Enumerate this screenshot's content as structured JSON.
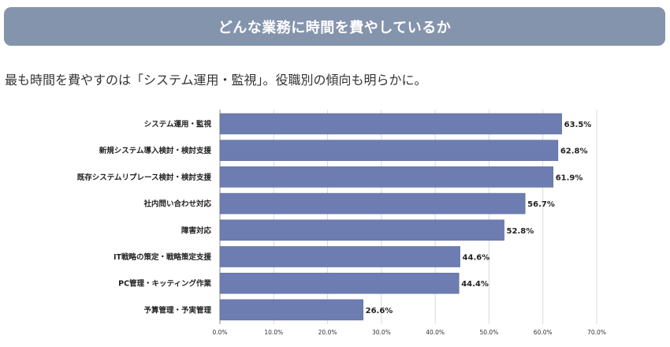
{
  "header": {
    "title": "どんな業務に時間を費やしているか",
    "subtitle": "最も時間を費やすのは「システム運用・監視」。役職別の傾向も明らかに。"
  },
  "colors": {
    "banner": "#8594ad",
    "bar": "#6d7db2",
    "grid": "#d9d9d9"
  },
  "chart_data": {
    "type": "bar",
    "orientation": "horizontal",
    "categories": [
      "システム運用・監視",
      "新規システム導入検討・検討支援",
      "既存システムリプレース検討・検討支援",
      "社内問い合わせ対応",
      "障害対応",
      "IT戦略の策定・戦略策定支援",
      "PC管理・キッティング作業",
      "予算管理・予実管理"
    ],
    "values": [
      63.5,
      62.8,
      61.9,
      56.7,
      52.8,
      44.6,
      44.4,
      26.6
    ],
    "value_labels": [
      "63.5%",
      "62.8%",
      "61.9%",
      "56.7%",
      "52.8%",
      "44.6%",
      "44.4%",
      "26.6%"
    ],
    "xlim": [
      0,
      70
    ],
    "x_ticks": [
      "0.0%",
      "10.0%",
      "20.0%",
      "30.0%",
      "40.0%",
      "50.0%",
      "60.0%",
      "70.0%"
    ],
    "grid": true,
    "legend": "none"
  }
}
